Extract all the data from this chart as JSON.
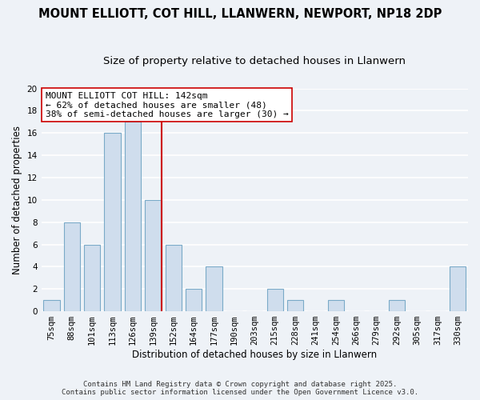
{
  "title": "MOUNT ELLIOTT, COT HILL, LLANWERN, NEWPORT, NP18 2DP",
  "subtitle": "Size of property relative to detached houses in Llanwern",
  "xlabel": "Distribution of detached houses by size in Llanwern",
  "ylabel": "Number of detached properties",
  "bar_color": "#cfdded",
  "bar_edge_color": "#7aaac8",
  "background_color": "#eef2f7",
  "grid_color": "#ffffff",
  "bins": [
    "75sqm",
    "88sqm",
    "101sqm",
    "113sqm",
    "126sqm",
    "139sqm",
    "152sqm",
    "164sqm",
    "177sqm",
    "190sqm",
    "203sqm",
    "215sqm",
    "228sqm",
    "241sqm",
    "254sqm",
    "266sqm",
    "279sqm",
    "292sqm",
    "305sqm",
    "317sqm",
    "330sqm"
  ],
  "counts": [
    1,
    8,
    6,
    16,
    17,
    10,
    6,
    2,
    4,
    0,
    0,
    2,
    1,
    0,
    1,
    0,
    0,
    1,
    0,
    0,
    4
  ],
  "ylim": [
    0,
    20
  ],
  "yticks": [
    0,
    2,
    4,
    6,
    8,
    10,
    12,
    14,
    16,
    18,
    20
  ],
  "marker_bin_index": 5,
  "marker_line_label": "MOUNT ELLIOTT COT HILL: 142sqm",
  "annotation_line1": "← 62% of detached houses are smaller (48)",
  "annotation_line2": "38% of semi-detached houses are larger (30) →",
  "footer_line1": "Contains HM Land Registry data © Crown copyright and database right 2025.",
  "footer_line2": "Contains public sector information licensed under the Open Government Licence v3.0.",
  "title_fontsize": 10.5,
  "subtitle_fontsize": 9.5,
  "axis_label_fontsize": 8.5,
  "tick_fontsize": 7.5,
  "annotation_fontsize": 8,
  "footer_fontsize": 6.5,
  "red_line_color": "#cc0000",
  "annotation_edge_color": "#cc0000"
}
